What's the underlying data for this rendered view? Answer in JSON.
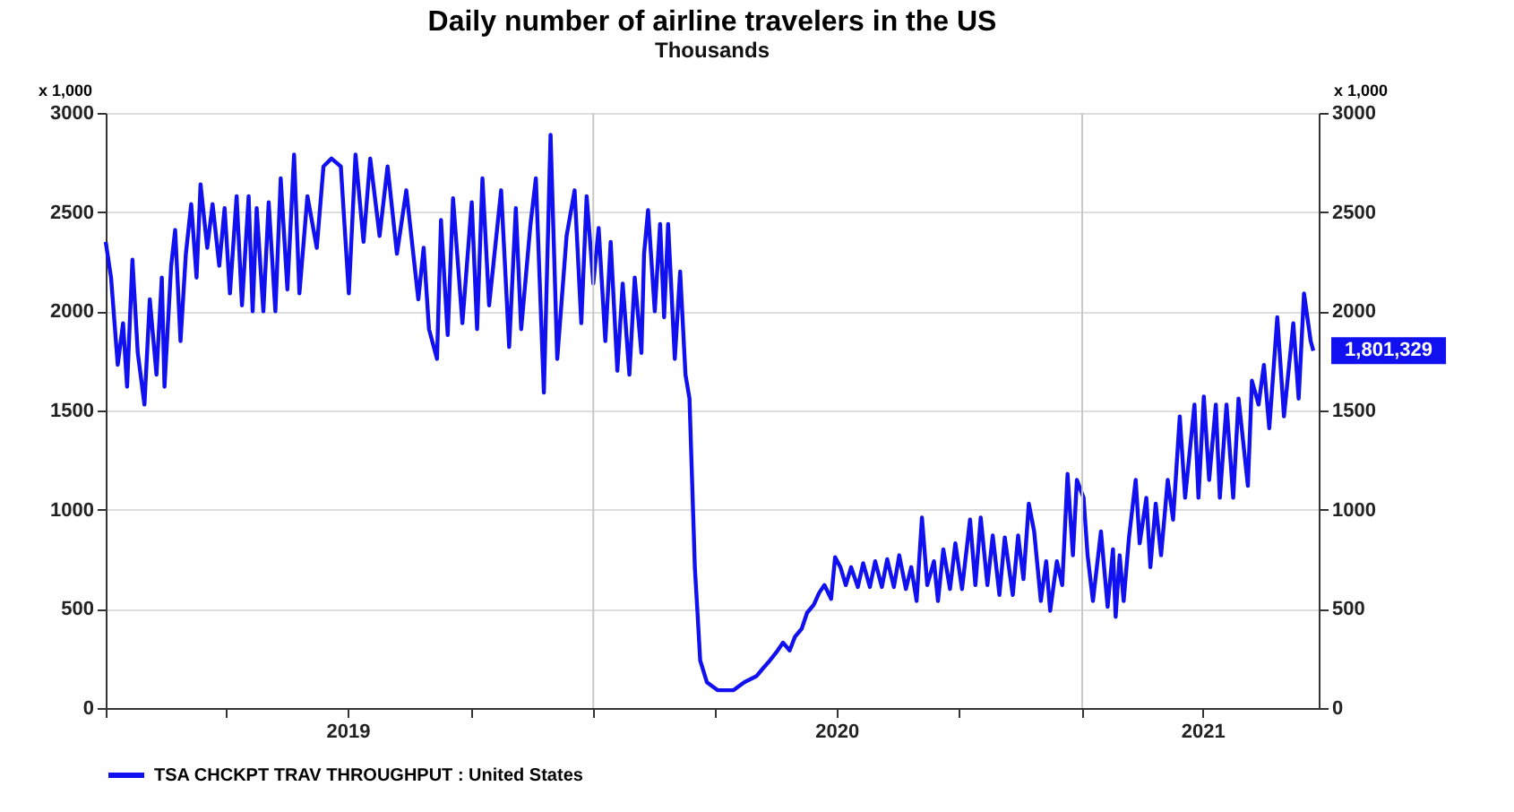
{
  "chart_data": {
    "type": "line",
    "title": "Daily number of airline travelers in the US",
    "subtitle": "Thousands",
    "ylabel": "x 1,000",
    "y2label": "x 1,000",
    "x": [
      "2019-01-01",
      "2019-01-05",
      "2019-01-10",
      "2019-01-14",
      "2019-01-17",
      "2019-01-21",
      "2019-01-25",
      "2019-01-30",
      "2019-02-03",
      "2019-02-08",
      "2019-02-12",
      "2019-02-14",
      "2019-02-19",
      "2019-02-22",
      "2019-02-26",
      "2019-03-02",
      "2019-03-06",
      "2019-03-10",
      "2019-03-13",
      "2019-03-18",
      "2019-03-22",
      "2019-03-27",
      "2019-03-31",
      "2019-04-04",
      "2019-04-09",
      "2019-04-13",
      "2019-04-18",
      "2019-04-21",
      "2019-04-24",
      "2019-04-29",
      "2019-05-03",
      "2019-05-08",
      "2019-05-12",
      "2019-05-17",
      "2019-05-22",
      "2019-05-26",
      "2019-06-01",
      "2019-06-08",
      "2019-06-13",
      "2019-06-19",
      "2019-06-26",
      "2019-07-02",
      "2019-07-07",
      "2019-07-13",
      "2019-07-18",
      "2019-07-25",
      "2019-07-31",
      "2019-08-07",
      "2019-08-14",
      "2019-08-23",
      "2019-08-27",
      "2019-08-31",
      "2019-09-06",
      "2019-09-09",
      "2019-09-14",
      "2019-09-18",
      "2019-09-25",
      "2019-10-02",
      "2019-10-06",
      "2019-10-10",
      "2019-10-15",
      "2019-10-24",
      "2019-10-30",
      "2019-11-04",
      "2019-11-08",
      "2019-11-15",
      "2019-11-19",
      "2019-11-25",
      "2019-11-30",
      "2019-12-05",
      "2019-12-12",
      "2019-12-18",
      "2019-12-23",
      "2019-12-27",
      "2020-01-01",
      "2020-01-05",
      "2020-01-10",
      "2020-01-14",
      "2020-01-19",
      "2020-01-23",
      "2020-01-28",
      "2020-02-01",
      "2020-02-06",
      "2020-02-08",
      "2020-02-11",
      "2020-02-16",
      "2020-02-20",
      "2020-02-23",
      "2020-02-26",
      "2020-03-02",
      "2020-03-06",
      "2020-03-10",
      "2020-03-13",
      "2020-03-17",
      "2020-03-19",
      "2020-03-21",
      "2020-03-26",
      "2020-04-03",
      "2020-04-15",
      "2020-04-23",
      "2020-05-02",
      "2020-05-07",
      "2020-05-11",
      "2020-05-18",
      "2020-05-22",
      "2020-05-27",
      "2020-05-31",
      "2020-06-05",
      "2020-06-09",
      "2020-06-14",
      "2020-06-18",
      "2020-06-22",
      "2020-06-27",
      "2020-06-30",
      "2020-07-04",
      "2020-07-08",
      "2020-07-12",
      "2020-07-17",
      "2020-07-21",
      "2020-07-26",
      "2020-07-30",
      "2020-08-04",
      "2020-08-08",
      "2020-08-13",
      "2020-08-17",
      "2020-08-22",
      "2020-08-26",
      "2020-08-30",
      "2020-09-03",
      "2020-09-07",
      "2020-09-12",
      "2020-09-15",
      "2020-09-19",
      "2020-09-24",
      "2020-09-28",
      "2020-10-03",
      "2020-10-09",
      "2020-10-13",
      "2020-10-17",
      "2020-10-22",
      "2020-10-26",
      "2020-10-31",
      "2020-11-04",
      "2020-11-10",
      "2020-11-14",
      "2020-11-18",
      "2020-11-22",
      "2020-11-26",
      "2020-12-01",
      "2020-12-05",
      "2020-12-08",
      "2020-12-13",
      "2020-12-17",
      "2020-12-21",
      "2020-12-25",
      "2020-12-28",
      "2021-01-02",
      "2021-01-05",
      "2021-01-09",
      "2021-01-15",
      "2021-01-20",
      "2021-01-24",
      "2021-01-26",
      "2021-01-29",
      "2021-02-01",
      "2021-02-05",
      "2021-02-10",
      "2021-02-13",
      "2021-02-18",
      "2021-02-21",
      "2021-02-25",
      "2021-03-01",
      "2021-03-06",
      "2021-03-10",
      "2021-03-15",
      "2021-03-19",
      "2021-03-26",
      "2021-03-29",
      "2021-04-02",
      "2021-04-06",
      "2021-04-11",
      "2021-04-14",
      "2021-04-19",
      "2021-04-24",
      "2021-04-28",
      "2021-05-05",
      "2021-05-08",
      "2021-05-13",
      "2021-05-17",
      "2021-05-21",
      "2021-05-27",
      "2021-06-01",
      "2021-06-08",
      "2021-06-12",
      "2021-06-16",
      "2021-06-21",
      "2021-06-23"
    ],
    "series": [
      {
        "name": "TSA CHCKPT TRAV THROUGHPUT : United States",
        "color": "#1010f0",
        "values": [
          2350,
          2170,
          1730,
          1940,
          1620,
          2260,
          1790,
          1530,
          2060,
          1680,
          2170,
          1620,
          2230,
          2410,
          1850,
          2290,
          2540,
          2170,
          2640,
          2320,
          2540,
          2230,
          2520,
          2090,
          2580,
          2030,
          2580,
          2000,
          2520,
          2000,
          2550,
          2000,
          2670,
          2110,
          2790,
          2090,
          2580,
          2320,
          2730,
          2770,
          2730,
          2090,
          2790,
          2350,
          2770,
          2380,
          2730,
          2290,
          2610,
          2060,
          2320,
          1910,
          1760,
          2460,
          1880,
          2570,
          1940,
          2550,
          1910,
          2670,
          2030,
          2610,
          1820,
          2520,
          1910,
          2440,
          2670,
          1590,
          2890,
          1760,
          2380,
          2610,
          1940,
          2580,
          2140,
          2420,
          1850,
          2350,
          1700,
          2140,
          1680,
          2170,
          1790,
          2290,
          2510,
          2000,
          2440,
          1970,
          2440,
          1760,
          2200,
          1680,
          1560,
          710,
          480,
          240,
          130,
          90,
          90,
          130,
          160,
          200,
          230,
          290,
          330,
          290,
          360,
          400,
          480,
          520,
          580,
          620,
          550,
          760,
          710,
          620,
          710,
          610,
          730,
          610,
          740,
          610,
          750,
          610,
          770,
          600,
          710,
          540,
          960,
          620,
          740,
          540,
          800,
          600,
          830,
          600,
          950,
          620,
          960,
          620,
          870,
          570,
          860,
          570,
          870,
          650,
          1030,
          890,
          540,
          740,
          490,
          740,
          620,
          1180,
          770,
          1150,
          1060,
          770,
          540,
          890,
          510,
          800,
          460,
          770,
          540,
          860,
          1150,
          830,
          1060,
          710,
          1030,
          770,
          1150,
          950,
          1470,
          1060,
          1530,
          1060,
          1570,
          1150,
          1530,
          1060,
          1530,
          1060,
          1560,
          1120,
          1650,
          1530,
          1730,
          1410,
          1970,
          1470,
          1940,
          1560,
          2090,
          1850,
          1801.329
        ]
      }
    ],
    "xlim": [
      "2019-01-01",
      "2021-06-27"
    ],
    "xticks": [
      {
        "value": "2019-01-01",
        "label": null
      },
      {
        "value": "2019-04-01",
        "label": null
      },
      {
        "value": "2019-07-01",
        "label": "2019"
      },
      {
        "value": "2019-10-01",
        "label": null
      },
      {
        "value": "2020-01-01",
        "label": null
      },
      {
        "value": "2020-04-01",
        "label": null
      },
      {
        "value": "2020-07-01",
        "label": "2020"
      },
      {
        "value": "2020-10-01",
        "label": null
      },
      {
        "value": "2021-01-01",
        "label": null
      },
      {
        "value": "2021-04-01",
        "label": "2021"
      }
    ],
    "ylim": [
      0,
      3000
    ],
    "yticks": [
      0,
      500,
      1000,
      1500,
      2000,
      2500,
      3000
    ],
    "y2lim": [
      0,
      3000
    ],
    "y2ticks": [
      0,
      500,
      1000,
      1500,
      2000,
      2500,
      3000
    ],
    "ref_lines": [
      {
        "axis": "x",
        "value": "2020-01-01",
        "color": "#c8c8c8"
      },
      {
        "axis": "x",
        "value": "2021-01-01",
        "color": "#c8c8c8"
      }
    ],
    "annotations": [
      {
        "text": "1,801,329",
        "x": "2021-06-23",
        "y": 1801.329
      }
    ],
    "grid": "y",
    "legend": "bottom left",
    "marker": "none",
    "line_style": "solid"
  }
}
